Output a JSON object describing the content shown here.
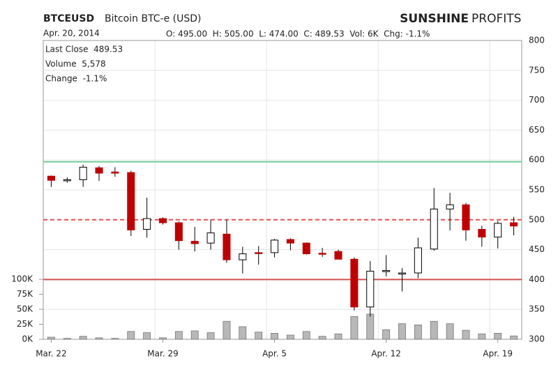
{
  "chart_data": {
    "type": "candlestick",
    "symbol": "BTCEUSD",
    "title": "Bitcoin BTC-e (USD)",
    "brand": [
      "SUNSHINE",
      "PROFITS"
    ],
    "date": "Apr. 20, 2014",
    "quote": "O: 495.00  H: 505.00  L: 474.00  C: 489.53  Vol: 6K  Chg: -1.1%",
    "info": [
      "Last Close  489.53",
      "Volume  5,578",
      "Change  -1.1%"
    ],
    "categories": [
      "Mar. 22",
      null,
      null,
      null,
      null,
      null,
      null,
      "Mar. 29",
      null,
      null,
      null,
      null,
      null,
      null,
      "Apr. 5",
      null,
      null,
      null,
      null,
      null,
      null,
      "Apr. 12",
      null,
      null,
      null,
      null,
      null,
      null,
      "Apr. 19",
      null
    ],
    "open": [
      573,
      566,
      567,
      587,
      580,
      579,
      484,
      502,
      495,
      464,
      461,
      476,
      433,
      445,
      445,
      467,
      461,
      444,
      447,
      434,
      354,
      414,
      411,
      411,
      451,
      518,
      525,
      484,
      471,
      495
    ],
    "high": [
      574,
      571,
      592,
      590,
      588,
      582,
      537,
      504,
      497,
      488,
      500,
      500,
      455,
      456,
      468,
      469,
      462,
      453,
      450,
      437,
      431,
      441,
      419,
      470,
      553,
      545,
      528,
      490,
      498,
      505
    ],
    "low": [
      555,
      562,
      555,
      565,
      572,
      473,
      470,
      492,
      450,
      447,
      450,
      428,
      410,
      425,
      437,
      449,
      442,
      438,
      434,
      348,
      338,
      405,
      380,
      402,
      448,
      482,
      465,
      455,
      452,
      474
    ],
    "close": [
      566,
      567,
      588,
      578,
      578,
      483,
      502,
      495,
      465,
      460,
      478,
      433,
      443,
      444,
      466,
      461,
      443,
      443,
      434,
      354,
      414,
      415,
      411,
      453,
      518,
      525,
      483,
      471,
      494,
      489.53
    ],
    "up_color": "#ffffff",
    "down_color": "#c00000",
    "ylim": [
      300,
      800
    ],
    "yticks": [
      300,
      350,
      400,
      450,
      500,
      550,
      600,
      650,
      700,
      750,
      800
    ],
    "volume": {
      "values": [
        3.5,
        1.5,
        5,
        2.5,
        1.5,
        13,
        11,
        2.5,
        13,
        14,
        11,
        30,
        21,
        12,
        10,
        7,
        13,
        5,
        9,
        38,
        42,
        16,
        26,
        24,
        30,
        26,
        15,
        9,
        10,
        5.578
      ],
      "color": "#b8b8b8",
      "ylim": [
        0,
        498
      ],
      "yticks": [
        {
          "value": 0,
          "label": "0K"
        },
        {
          "value": 25,
          "label": "25K"
        },
        {
          "value": 50,
          "label": "50K"
        },
        {
          "value": 75,
          "label": "75K"
        },
        {
          "value": 100,
          "label": "100K"
        }
      ]
    },
    "levels": [
      {
        "value": 597,
        "color": "#6fcf97",
        "style": "solid"
      },
      {
        "value": 500,
        "color": "#e05555",
        "style": "dashed"
      },
      {
        "value": 400,
        "color": "#d05050",
        "style": "solid"
      }
    ],
    "grid": true
  }
}
